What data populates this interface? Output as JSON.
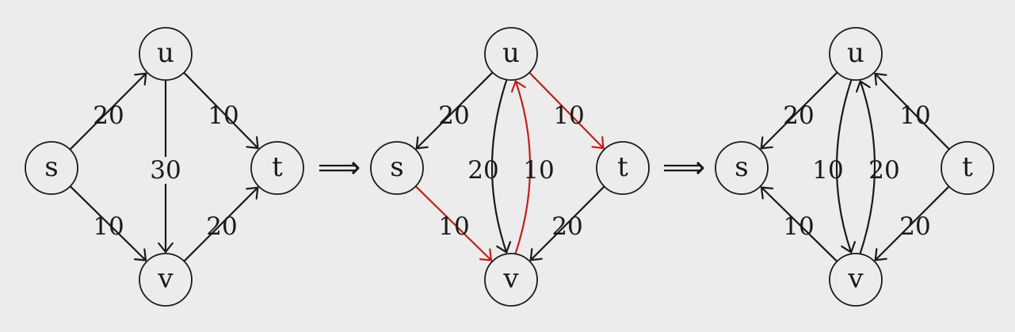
{
  "colors": {
    "ink": "#1a1a1a",
    "highlight": "#c0201a",
    "background": "#ececec"
  },
  "implies_symbol": "⟹",
  "panels": [
    {
      "nodes": [
        {
          "id": "s",
          "label": "s"
        },
        {
          "id": "u",
          "label": "u"
        },
        {
          "id": "t",
          "label": "t"
        },
        {
          "id": "v",
          "label": "v"
        }
      ],
      "edges": [
        {
          "from": "s",
          "to": "u",
          "weight": "20",
          "highlight": false
        },
        {
          "from": "u",
          "to": "t",
          "weight": "10",
          "highlight": false
        },
        {
          "from": "u",
          "to": "v",
          "weight": "30",
          "highlight": false
        },
        {
          "from": "s",
          "to": "v",
          "weight": "10",
          "highlight": false
        },
        {
          "from": "v",
          "to": "t",
          "weight": "20",
          "highlight": false
        }
      ]
    },
    {
      "nodes": [
        {
          "id": "s",
          "label": "s"
        },
        {
          "id": "u",
          "label": "u"
        },
        {
          "id": "t",
          "label": "t"
        },
        {
          "id": "v",
          "label": "v"
        }
      ],
      "edges": [
        {
          "from": "u",
          "to": "s",
          "weight": "20",
          "highlight": false
        },
        {
          "from": "u",
          "to": "t",
          "weight": "10",
          "highlight": true
        },
        {
          "from": "v",
          "to": "u",
          "weight": "20",
          "highlight": true
        },
        {
          "from": "u",
          "to": "v",
          "weight": "10",
          "highlight": false
        },
        {
          "from": "s",
          "to": "v",
          "weight": "10",
          "highlight": true
        },
        {
          "from": "t",
          "to": "v",
          "weight": "20",
          "highlight": false
        }
      ]
    },
    {
      "nodes": [
        {
          "id": "s",
          "label": "s"
        },
        {
          "id": "u",
          "label": "u"
        },
        {
          "id": "t",
          "label": "t"
        },
        {
          "id": "v",
          "label": "v"
        }
      ],
      "edges": [
        {
          "from": "u",
          "to": "s",
          "weight": "20",
          "highlight": false
        },
        {
          "from": "t",
          "to": "u",
          "weight": "10",
          "highlight": false
        },
        {
          "from": "v",
          "to": "u",
          "weight": "10",
          "highlight": false
        },
        {
          "from": "u",
          "to": "v",
          "weight": "20",
          "highlight": false
        },
        {
          "from": "v",
          "to": "s",
          "weight": "10",
          "highlight": false
        },
        {
          "from": "t",
          "to": "v",
          "weight": "20",
          "highlight": false
        }
      ]
    }
  ]
}
